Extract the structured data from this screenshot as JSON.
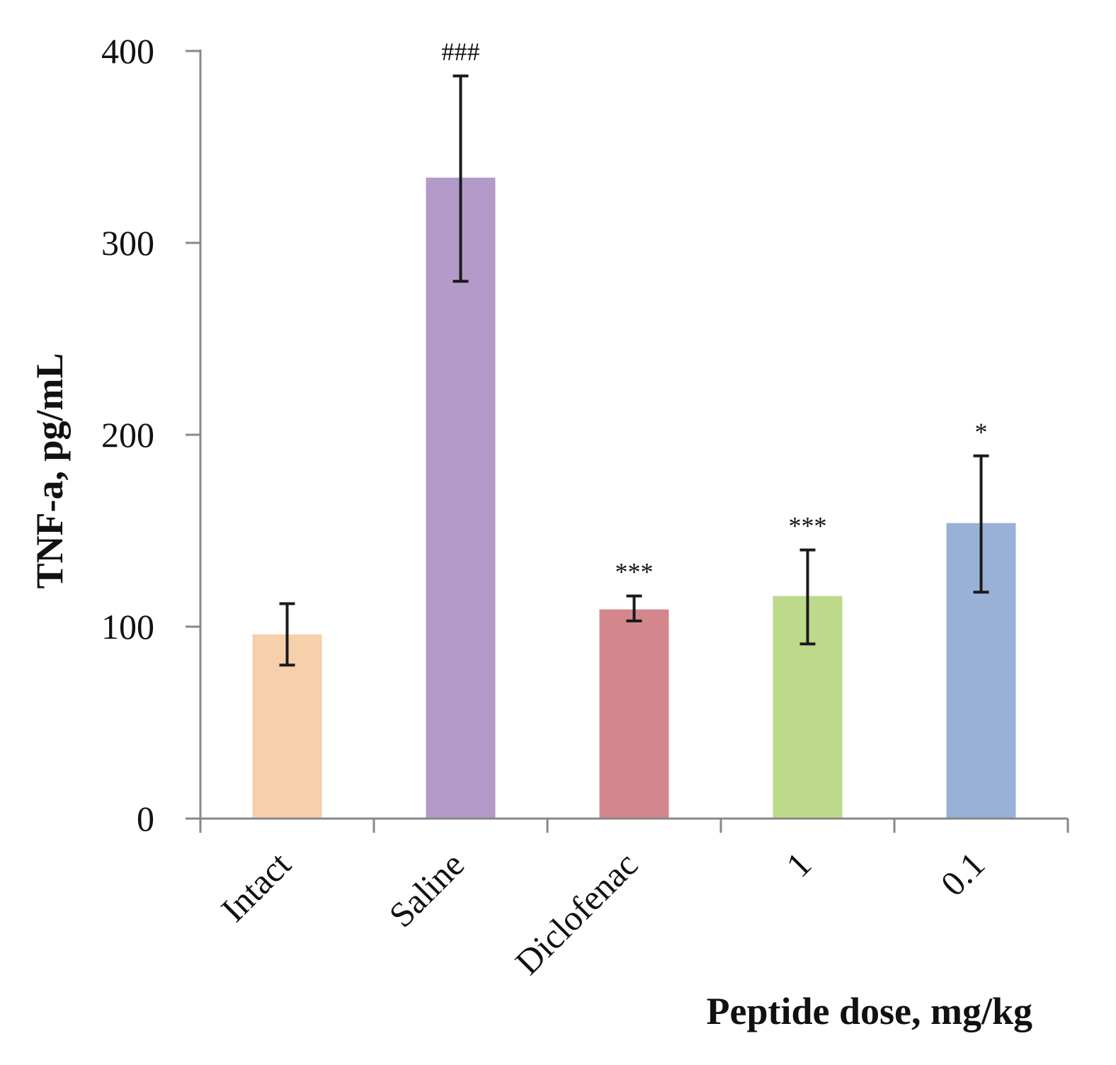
{
  "chart_data": {
    "type": "bar",
    "categories": [
      "Intact",
      "Saline",
      "Diclofenac",
      "1",
      "0.1"
    ],
    "values": [
      96,
      334,
      109,
      116,
      154
    ],
    "error_low": [
      80,
      280,
      103,
      91,
      118
    ],
    "error_high": [
      112,
      387,
      116,
      140,
      189
    ],
    "annotations": [
      "",
      "###",
      "***",
      "***",
      "*"
    ],
    "colors": [
      "#f6cfab",
      "#b39ac9",
      "#d4868d",
      "#bdd98c",
      "#99b1d6"
    ],
    "title": "",
    "xlabel": "Peptide dose, mg/kg",
    "ylabel": "TNF-a, pg/mL",
    "ylim": [
      0,
      400
    ],
    "yticks": [
      0,
      100,
      200,
      300,
      400
    ],
    "ytick_labels": [
      "0",
      "100",
      "200",
      "300",
      "400"
    ],
    "grid": false,
    "legend": "none"
  }
}
